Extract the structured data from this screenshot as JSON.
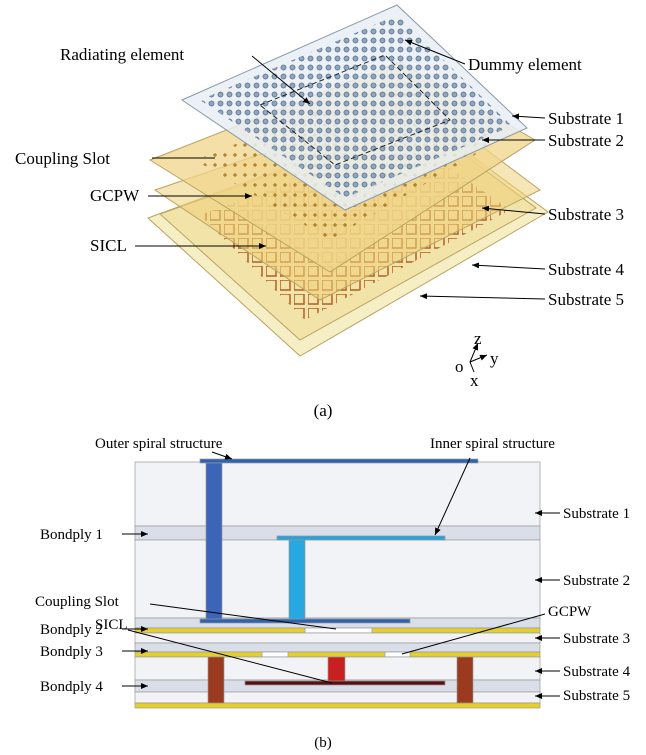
{
  "figure_a": {
    "radiating_element": "Radiating element",
    "dummy_element": "Dummy element",
    "substrate_1": "Substrate 1",
    "substrate_2": "Substrate 2",
    "coupling_slot": "Coupling Slot",
    "gcpw": "GCPW",
    "substrate_3": "Substrate 3",
    "sicl": "SICL",
    "substrate_4": "Substrate 4",
    "substrate_5": "Substrate 5",
    "axis_z": "z",
    "axis_y": "y",
    "axis_x": "x",
    "axis_o": "o",
    "caption": "(a)"
  },
  "figure_b": {
    "outer_spiral": "Outer spiral structure",
    "inner_spiral": "Inner spiral structure",
    "substrate_1": "Substrate 1",
    "bondply_1": "Bondply 1",
    "substrate_2": "Substrate 2",
    "coupling_slot": "Coupling Slot",
    "gcpw": "GCPW",
    "sicl": "SICL",
    "bondply_2": "Bondply 2",
    "substrate_3": "Substrate 3",
    "bondply_3": "Bondply 3",
    "substrate_4": "Substrate 4",
    "bondply_4": "Bondply 4",
    "substrate_5": "Substrate 5",
    "caption": "(b)"
  }
}
